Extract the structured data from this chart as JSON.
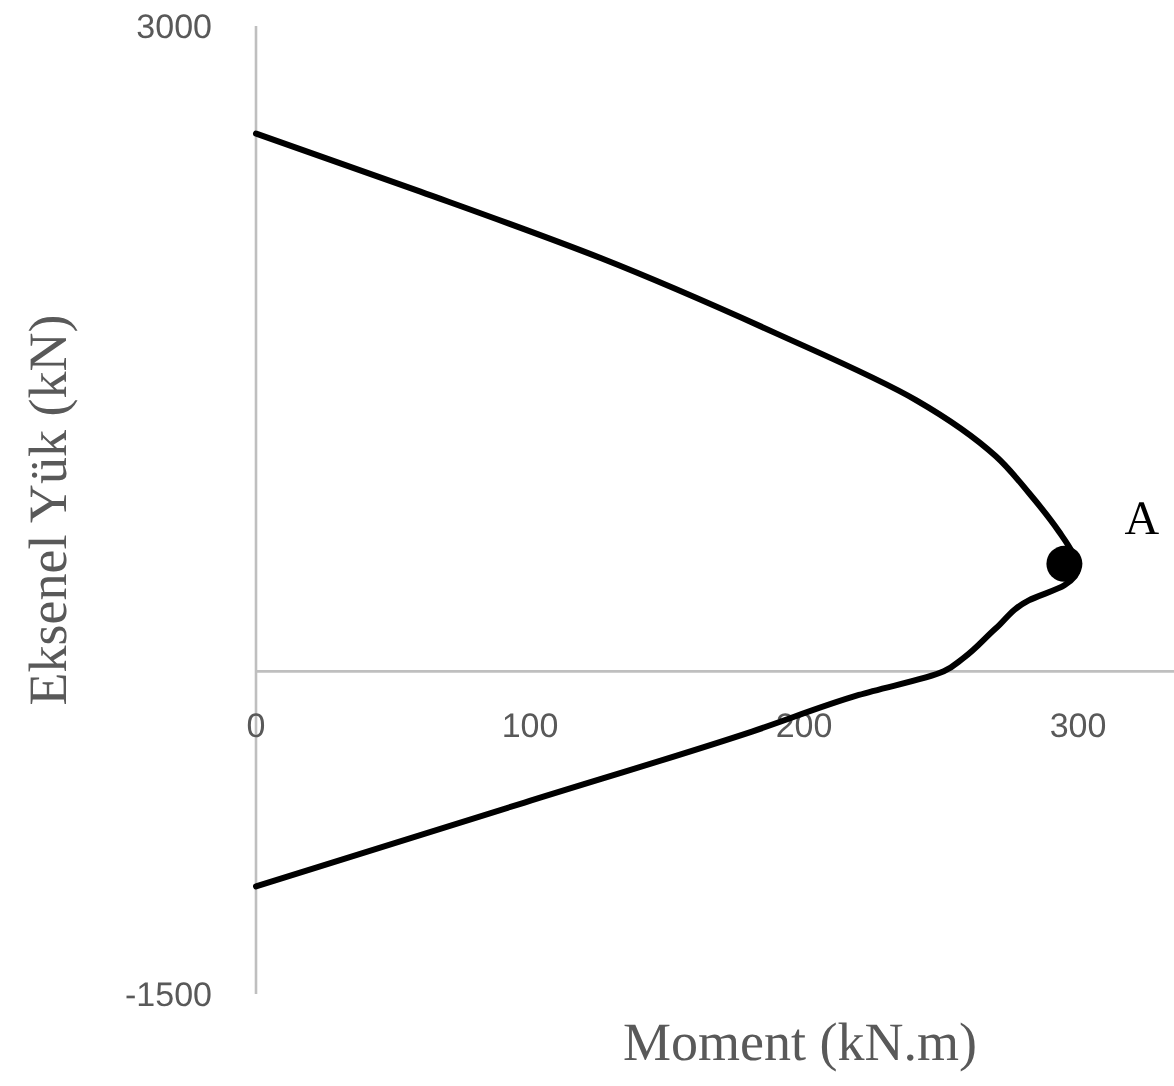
{
  "chart_data": {
    "type": "line",
    "xlabel": "Moment (kN.m)",
    "ylabel": "Eksenel Yük (kN)",
    "xlim": [
      0,
      335
    ],
    "xticks": [
      0,
      100,
      200,
      300
    ],
    "ylim": [
      -1500,
      3000
    ],
    "yticks": [
      3000,
      -1500
    ],
    "series": [
      {
        "color": "#000000",
        "x": [
          0,
          60,
          126,
          190,
          241,
          270,
          282,
          293,
          298,
          300,
          295,
          282,
          270,
          258,
          251,
          220,
          181,
          98,
          0
        ],
        "values": [
          2500,
          2230,
          1920,
          1570,
          1260,
          1000,
          830,
          650,
          550,
          480,
          400,
          330,
          200,
          60,
          0,
          -110,
          -280,
          -610,
          -1000
        ]
      },
      {
        "type": "scatter",
        "color": "#000000",
        "marker": "circle",
        "x": [
          295
        ],
        "values": [
          500
        ]
      }
    ],
    "annotations": [
      {
        "text": "A",
        "x": 295,
        "y": 500
      }
    ]
  }
}
